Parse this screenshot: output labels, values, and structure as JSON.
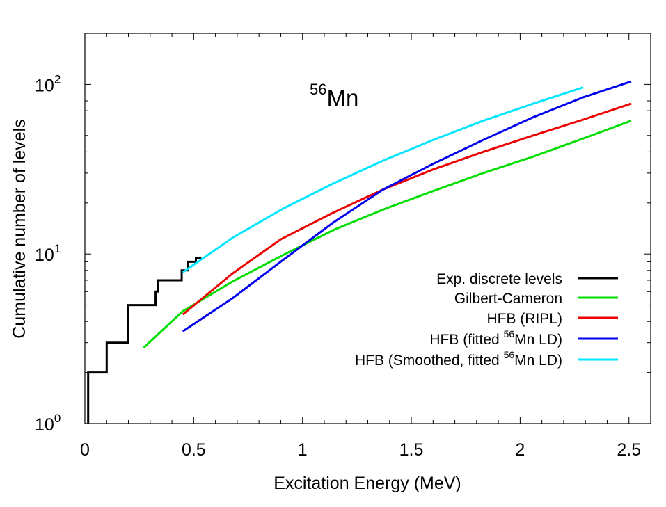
{
  "chart_data": {
    "type": "line",
    "annotation": {
      "superscript": "56",
      "text": "Mn"
    },
    "xlabel": "Excitation Energy (MeV)",
    "ylabel": "Cumulative number of levels",
    "xlim": [
      0,
      2.6
    ],
    "ylim": [
      1,
      200
    ],
    "yscale": "log",
    "x_ticks": [
      0,
      0.5,
      1,
      1.5,
      2,
      2.5
    ],
    "x_tick_labels": [
      "0",
      "0.5",
      "1",
      "1.5",
      "2",
      "2.5"
    ],
    "y_ticks": [
      1,
      10,
      100
    ],
    "y_tick_labels": [
      {
        "base": "10",
        "exp": "0"
      },
      {
        "base": "10",
        "exp": "1"
      },
      {
        "base": "10",
        "exp": "2"
      }
    ],
    "legend_position": "right",
    "grid": false,
    "series": [
      {
        "name": "Exp. discrete levels",
        "color": "#000000",
        "style": "step",
        "x": [
          0.015,
          0.015,
          0.1,
          0.1,
          0.2,
          0.2,
          0.325,
          0.325,
          0.335,
          0.335,
          0.445,
          0.445,
          0.475,
          0.475,
          0.51,
          0.51,
          0.535
        ],
        "y": [
          1,
          2,
          2,
          3,
          3,
          5,
          5,
          6,
          6,
          7,
          7,
          8,
          8,
          9,
          9,
          9.5,
          9.5
        ]
      },
      {
        "name": "Gilbert-Cameron",
        "color": "#00dd00",
        "x": [
          0.27,
          0.45,
          0.68,
          0.92,
          1.15,
          1.38,
          1.6,
          1.83,
          2.06,
          2.29,
          2.51
        ],
        "y": [
          2.8,
          4.6,
          6.9,
          10.0,
          14.0,
          18.5,
          23.5,
          30.0,
          37.5,
          48.0,
          61.0
        ]
      },
      {
        "name": "HFB (RIPL)",
        "color": "#ee0000",
        "x": [
          0.45,
          0.68,
          0.9,
          1.14,
          1.37,
          1.6,
          1.83,
          2.06,
          2.29,
          2.51
        ],
        "y": [
          4.4,
          7.7,
          12.2,
          17.5,
          24.0,
          31.5,
          40.0,
          50.0,
          62.0,
          77.0
        ]
      },
      {
        "name": {
          "prefix": "HFB (fitted ",
          "sup": "56",
          "suffix": "Mn LD)"
        },
        "color": "#0000ee",
        "x": [
          0.45,
          0.68,
          0.91,
          1.14,
          1.37,
          1.6,
          1.83,
          2.06,
          2.29,
          2.51
        ],
        "y": [
          3.5,
          5.5,
          9.2,
          15.3,
          24.0,
          34.0,
          47.0,
          64.0,
          84.0,
          104.0
        ]
      },
      {
        "name": {
          "prefix": "HFB (Smoothed, fitted ",
          "sup": "56",
          "suffix": "Mn LD)"
        },
        "color": "#00e6ff",
        "x": [
          0.45,
          0.68,
          0.91,
          1.14,
          1.37,
          1.6,
          1.83,
          2.06,
          2.29
        ],
        "y": [
          7.8,
          12.5,
          18.5,
          26.0,
          35.5,
          47.0,
          61.0,
          77.0,
          96.0
        ]
      }
    ]
  }
}
